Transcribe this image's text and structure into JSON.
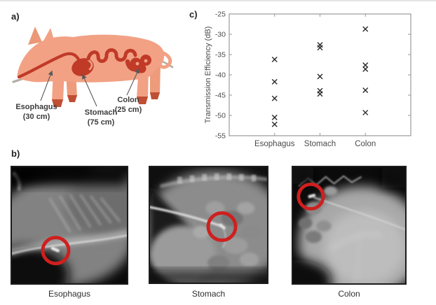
{
  "panel_a": {
    "tag": "a)",
    "organs": [
      {
        "name": "Esophagus",
        "length": "(30 cm)"
      },
      {
        "name": "Stomach",
        "length": "(75 cm)"
      },
      {
        "name": "Colon",
        "length": "(25 cm)"
      }
    ],
    "colors": {
      "body": "#f2a184",
      "tract": "#c03a28",
      "hoof": "#bf4f33",
      "tether": "#b3aca3"
    }
  },
  "panel_b": {
    "tag": "b)",
    "images": [
      {
        "label": "Esophagus"
      },
      {
        "label": "Stomach"
      },
      {
        "label": "Colon"
      }
    ],
    "marker_color": "#cf1f1f"
  },
  "panel_c": {
    "tag": "c)"
  },
  "chart_data": {
    "type": "scatter",
    "marker": "x",
    "title": "",
    "xlabel": "",
    "ylabel": "Transmission Efficiency (dB)",
    "ylim": [
      -55,
      -25
    ],
    "yticks": [
      -25,
      -30,
      -35,
      -40,
      -45,
      -50,
      -55
    ],
    "categories": [
      "Esophagus",
      "Stomach",
      "Colon"
    ],
    "series": [
      {
        "name": "Esophagus",
        "values": [
          -36.2,
          -41.7,
          -45.8,
          -50.5,
          -52.2
        ]
      },
      {
        "name": "Stomach",
        "values": [
          -32.6,
          -33.3,
          -40.4,
          -43.9,
          -44.7
        ]
      },
      {
        "name": "Colon",
        "values": [
          -28.7,
          -37.6,
          -38.6,
          -43.8,
          -49.3
        ]
      }
    ],
    "grid": false,
    "legend": "none",
    "axis_color": "#9a9a9a",
    "text_color": "#4a4a4a",
    "marker_color": "#2b2b2b"
  }
}
